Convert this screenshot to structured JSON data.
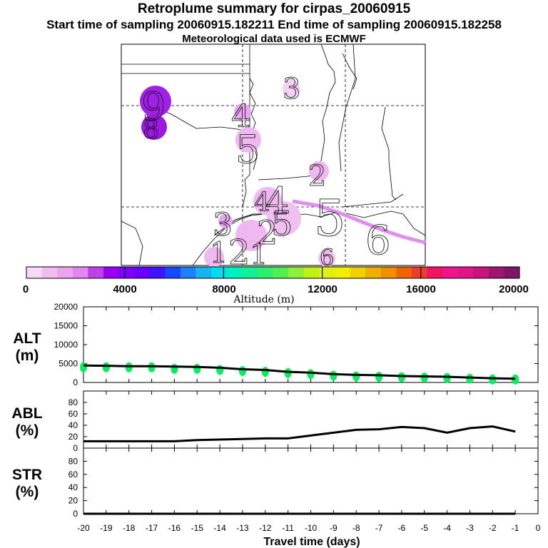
{
  "header": {
    "title": "Retroplume summary for cirpas_20060915",
    "sampling": "Start time of sampling 20060915.182211      End time of sampling 20060915.182258",
    "met": "Meteorological data used is ECMWF"
  },
  "colors": {
    "scale": [
      "#f7d9f7",
      "#f0bdf0",
      "#eca4f0",
      "#e087f0",
      "#c040e8",
      "#9c00f0",
      "#8000ff",
      "#6a00ff",
      "#3c14ff",
      "#1848ff",
      "#1e80ff",
      "#18b4f0",
      "#00dcf0",
      "#00f0c0",
      "#14f096",
      "#28f070",
      "#50f050",
      "#8cf03c",
      "#c0f014",
      "#e0f014",
      "#f0f000",
      "#f0d200",
      "#f0b000",
      "#f09000",
      "#f06400",
      "#f03c28",
      "#f01460",
      "#f0148c",
      "#e0148c",
      "#c81478",
      "#a01470",
      "#801468"
    ],
    "marker": "#00f060",
    "plume": "#e08ef0",
    "map_circle_dark": "#a020e8",
    "map_circle_light": "#f0c0f0"
  },
  "map": {
    "time_labels": [
      "3",
      "4",
      "5",
      "2",
      "5",
      "6",
      "9",
      "8",
      "1",
      "2",
      "3",
      "4",
      "5",
      "6",
      "1",
      "2",
      "4"
    ]
  },
  "colorbar": {
    "ticks": [
      "0",
      "4000",
      "8000",
      "12000",
      "16000",
      "20000"
    ],
    "label": "Altitude (m)"
  },
  "chart_data": [
    {
      "type": "line",
      "name": "ALT",
      "ylabel": "ALT\n(m)",
      "ylabel_lines": [
        "ALT",
        "(m)"
      ],
      "xlabel": "Travel time (days)",
      "xlim": [
        -20,
        0
      ],
      "ylim": [
        0,
        20000
      ],
      "yticks": [
        "20000",
        "15000",
        "10000",
        "5000",
        "0"
      ],
      "x": [
        -20,
        -19,
        -18,
        -17,
        -16,
        -15,
        -14,
        -13,
        -12,
        -11,
        -10,
        -9,
        -8,
        -7,
        -6,
        -5,
        -4,
        -3,
        -2,
        -1
      ],
      "values": [
        4500,
        4400,
        4300,
        4300,
        4200,
        4100,
        3900,
        3500,
        3300,
        2800,
        2600,
        2200,
        2000,
        1900,
        1700,
        1600,
        1500,
        1300,
        1100,
        1000
      ],
      "markers_x": [
        -20,
        -19,
        -18,
        -17,
        -16,
        -15,
        -14,
        -13,
        -12,
        -11,
        -10,
        -9,
        -8,
        -7,
        -6,
        -5,
        -4,
        -3,
        -2,
        -1
      ],
      "markers_y": [
        4000,
        4000,
        4000,
        4000,
        3600,
        3600,
        3300,
        3000,
        2800,
        2500,
        2200,
        1800,
        1600,
        1500,
        1400,
        1300,
        1200,
        1000,
        800,
        800
      ]
    },
    {
      "type": "line",
      "name": "ABL",
      "ylabel": "ABL\n(%)",
      "ylabel_lines": [
        "ABL",
        "(%)"
      ],
      "xlim": [
        -20,
        0
      ],
      "ylim": [
        0,
        100
      ],
      "yticks": [
        "80",
        "60",
        "40",
        "20",
        "0"
      ],
      "x": [
        -20,
        -19,
        -18,
        -17,
        -16,
        -15,
        -14,
        -13,
        -12,
        -11,
        -10,
        -9,
        -8,
        -7,
        -6,
        -5,
        -4,
        -3,
        -2,
        -1
      ],
      "values": [
        12,
        12,
        12,
        12,
        12,
        14,
        15,
        16,
        17,
        17,
        22,
        27,
        32,
        33,
        37,
        35,
        27,
        35,
        38,
        29
      ]
    },
    {
      "type": "line",
      "name": "STR",
      "ylabel": "STR\n(%)",
      "ylabel_lines": [
        "STR",
        "(%)"
      ],
      "xlim": [
        -20,
        0
      ],
      "ylim": [
        0,
        100
      ],
      "yticks": [
        "80",
        "60",
        "40",
        "20",
        "0"
      ],
      "xticks": [
        "-20",
        "-19",
        "-18",
        "-17",
        "-16",
        "-15",
        "-14",
        "-13",
        "-12",
        "-11",
        "-10",
        "-9",
        "-8",
        "-7",
        "-6",
        "-5",
        "-4",
        "-3",
        "-2",
        "-1",
        "0"
      ],
      "x": [
        -20,
        -19,
        -18,
        -17,
        -16,
        -15,
        -14,
        -13,
        -12,
        -11,
        -10,
        -9,
        -8,
        -7,
        -6,
        -5,
        -4,
        -3,
        -2,
        -1
      ],
      "values": [
        0,
        0,
        0,
        0,
        0,
        0,
        0,
        0,
        0,
        0,
        0,
        0,
        0,
        0,
        0,
        0,
        0,
        0,
        0,
        0
      ]
    }
  ]
}
